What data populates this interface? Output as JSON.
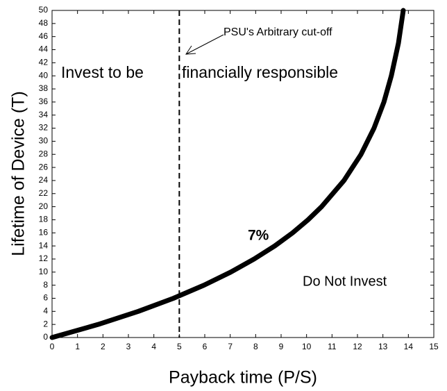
{
  "chart_data": {
    "type": "line",
    "xlabel": "Payback time (P/S)",
    "ylabel": "Lifetime of Device (T)",
    "x": [
      0,
      1.81,
      3.39,
      4.77,
      5.97,
      7.02,
      7.94,
      8.75,
      9.45,
      10.06,
      10.59,
      11.47,
      12.14,
      12.65,
      13.04,
      13.33,
      13.61,
      13.8
    ],
    "series": [
      {
        "name": "7%",
        "color": "#000000",
        "values": [
          0,
          2,
          4,
          6,
          8,
          10,
          12,
          14,
          16,
          18,
          20,
          24,
          28,
          32,
          36,
          40,
          45,
          50
        ]
      }
    ],
    "xlim": [
      0,
      15
    ],
    "ylim": [
      0,
      50
    ],
    "xticks": [
      0,
      1,
      2,
      3,
      4,
      5,
      6,
      7,
      8,
      9,
      10,
      11,
      12,
      13,
      14,
      15
    ],
    "yticks": [
      0,
      2,
      4,
      6,
      8,
      10,
      12,
      14,
      16,
      18,
      20,
      22,
      24,
      26,
      28,
      30,
      32,
      34,
      36,
      38,
      40,
      42,
      44,
      46,
      48,
      50
    ],
    "cutoff_x": 5,
    "annotations": [
      "PSU's Arbitrary cut-off",
      "Invest to be",
      "financially responsible",
      "Do Not Invest"
    ]
  }
}
